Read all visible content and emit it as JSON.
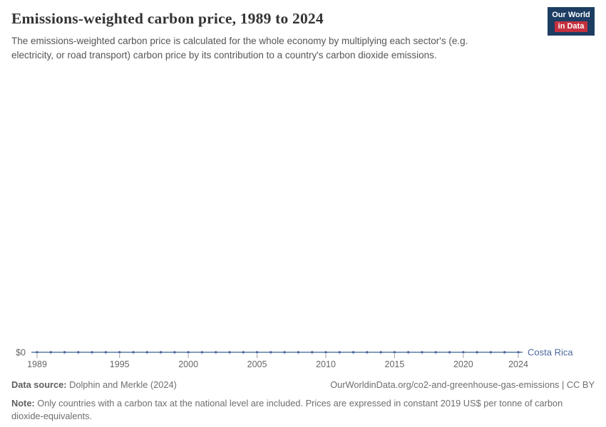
{
  "header": {
    "title": "Emissions-weighted carbon price, 1989 to 2024",
    "subtitle": "The emissions-weighted carbon price is calculated for the whole economy by multiplying each sector's (e.g. electricity, or road transport) carbon price by its contribution to a country's carbon dioxide emissions.",
    "logo_line1": "Our World",
    "logo_line2": "in Data",
    "logo_colors": {
      "blue": "#1d3d63",
      "red": "#c5303e"
    }
  },
  "chart_data": {
    "type": "line",
    "title": "Emissions-weighted carbon price, 1989 to 2024",
    "x": [
      1989,
      1990,
      1991,
      1992,
      1993,
      1994,
      1995,
      1996,
      1997,
      1998,
      1999,
      2000,
      2001,
      2002,
      2003,
      2004,
      2005,
      2006,
      2007,
      2008,
      2009,
      2010,
      2011,
      2012,
      2013,
      2014,
      2015,
      2016,
      2017,
      2018,
      2019,
      2020,
      2021,
      2022,
      2023,
      2024
    ],
    "series": [
      {
        "name": "Costa Rica",
        "color": "#4C6A9C",
        "values": [
          0,
          0,
          0,
          0,
          0,
          0,
          0,
          0,
          0,
          0,
          0,
          0,
          0,
          0,
          0,
          0,
          0,
          0,
          0,
          0,
          0,
          0,
          0,
          0,
          0,
          0,
          0,
          0,
          0,
          0,
          0,
          0,
          0,
          0,
          0,
          0
        ]
      }
    ],
    "x_ticks": [
      1989,
      1995,
      2000,
      2005,
      2010,
      2015,
      2020,
      2024
    ],
    "y_tick_label": "$0",
    "y_min": 0,
    "grid": false,
    "legend": "inline-entity-label"
  },
  "footer": {
    "source_label": "Data source:",
    "source_value": "Dolphin and Merkle (2024)",
    "credit": "OurWorldinData.org/co2-and-greenhouse-gas-emissions | CC BY",
    "note_label": "Note:",
    "note_text": "Only countries with a carbon tax at the national level are included. Prices are expressed in constant 2019 US$ per tonne of carbon dioxide-equivalents."
  }
}
